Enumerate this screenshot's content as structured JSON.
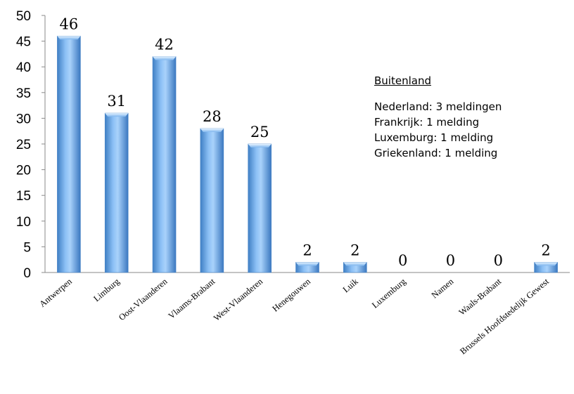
{
  "chart_data": {
    "type": "bar",
    "categories": [
      "Antwerpen",
      "Limburg",
      "Oost-Vlaanderen",
      "Vlaams-Brabant",
      "West-Vlaanderen",
      "Henegouwen",
      "Luik",
      "Luxemburg",
      "Namen",
      "Waals-Brabant",
      "Brussels Hoofdstedelijk Gewest"
    ],
    "values": [
      46,
      31,
      42,
      28,
      25,
      2,
      2,
      0,
      0,
      0,
      2
    ],
    "ylim": [
      0,
      50
    ],
    "yticks": [
      0,
      5,
      10,
      15,
      20,
      25,
      30,
      35,
      40,
      45,
      50
    ],
    "grid": false,
    "bar_color": "#5b9bd5"
  },
  "annotation": {
    "title": "Buitenland",
    "lines": [
      "Nederland: 3 meldingen",
      "Frankrijk: 1 melding",
      "Luxemburg: 1 melding",
      "Griekenland: 1 melding"
    ]
  }
}
